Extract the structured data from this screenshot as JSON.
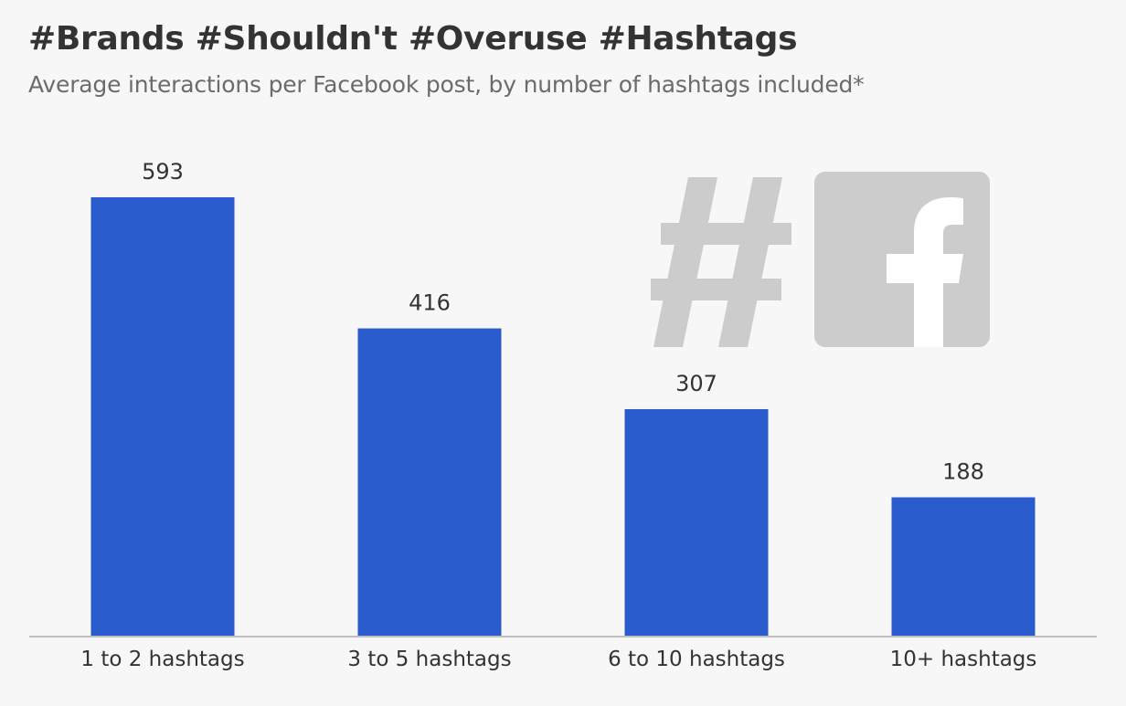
{
  "header": {
    "title": "#Brands #Shouldn't #Overuse #Hashtags",
    "subtitle": "Average interactions per Facebook post, by number of hashtags included*"
  },
  "colors": {
    "bar": "#295bcc",
    "background": "#f7f7f7",
    "icon": "#cccccc",
    "axis": "#bfbfbf"
  },
  "icons": [
    "hashtag-icon",
    "facebook-icon"
  ],
  "chart_data": {
    "type": "bar",
    "categories": [
      "1 to 2 hashtags",
      "3 to 5 hashtags",
      "6 to 10 hashtags",
      "10+ hashtags"
    ],
    "values": [
      593,
      416,
      307,
      188
    ],
    "data_labels": [
      "593",
      "416",
      "307",
      "188"
    ],
    "title": "#Brands #Shouldn't #Overuse #Hashtags",
    "subtitle": "Average interactions per Facebook post, by number of hashtags included*",
    "ylim": [
      0,
      593
    ],
    "grid": false,
    "legend": "none"
  }
}
